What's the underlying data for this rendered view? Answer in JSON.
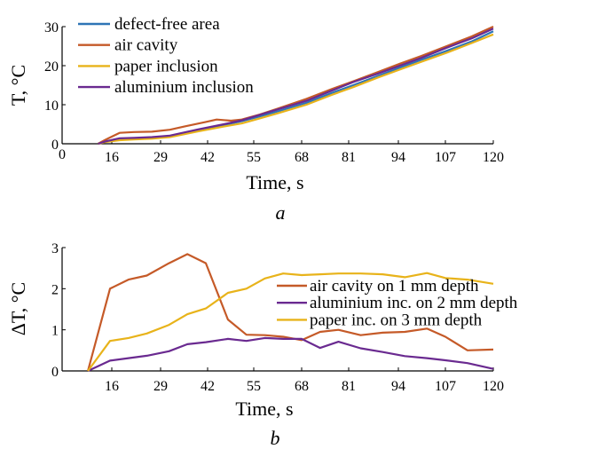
{
  "chart_data": [
    {
      "type": "line",
      "panel_label": "a",
      "xlabel": "Time, s",
      "ylabel": "T, °C",
      "x_tick_labels": [
        "0",
        "16",
        "29",
        "42",
        "55",
        "68",
        "81",
        "94",
        "107",
        "120"
      ],
      "y_tick_labels": [
        "0",
        "10",
        "20",
        "30"
      ],
      "xlim": [
        0,
        120
      ],
      "ylim": [
        0,
        30
      ],
      "grid": false,
      "legend_position": "top-left",
      "series": [
        {
          "name": "defect-free area",
          "color": "#2E75B6",
          "points": [
            [
              10,
              0
            ],
            [
              12,
              0.5
            ],
            [
              16,
              1.0
            ],
            [
              20,
              1.2
            ],
            [
              25,
              1.4
            ],
            [
              30,
              1.9
            ],
            [
              38,
              3.5
            ],
            [
              45,
              4.8
            ],
            [
              50,
              5.8
            ],
            [
              55,
              7.0
            ],
            [
              60,
              8.3
            ],
            [
              68,
              10.5
            ],
            [
              75,
              13.0
            ],
            [
              81,
              15.0
            ],
            [
              88,
              17.4
            ],
            [
              94,
              19.5
            ],
            [
              100,
              21.5
            ],
            [
              107,
              23.8
            ],
            [
              114,
              26.2
            ],
            [
              120,
              28.8
            ]
          ]
        },
        {
          "name": "air cavity",
          "color": "#C55A28",
          "points": [
            [
              10,
              0
            ],
            [
              12,
              1.0
            ],
            [
              16,
              2.8
            ],
            [
              20,
              3.0
            ],
            [
              25,
              3.1
            ],
            [
              30,
              3.6
            ],
            [
              34,
              4.4
            ],
            [
              40,
              5.6
            ],
            [
              43,
              6.2
            ],
            [
              47,
              5.9
            ],
            [
              50,
              6.2
            ],
            [
              55,
              7.5
            ],
            [
              60,
              9.0
            ],
            [
              68,
              11.5
            ],
            [
              75,
              14.0
            ],
            [
              81,
              16.0
            ],
            [
              88,
              18.4
            ],
            [
              94,
              20.5
            ],
            [
              100,
              22.5
            ],
            [
              107,
              25.0
            ],
            [
              114,
              27.5
            ],
            [
              120,
              30.0
            ]
          ]
        },
        {
          "name": "paper inclusion",
          "color": "#E8B31A",
          "points": [
            [
              10,
              0
            ],
            [
              12,
              0.4
            ],
            [
              16,
              0.9
            ],
            [
              20,
              1.1
            ],
            [
              25,
              1.3
            ],
            [
              30,
              1.7
            ],
            [
              38,
              3.2
            ],
            [
              45,
              4.4
            ],
            [
              50,
              5.2
            ],
            [
              55,
              6.5
            ],
            [
              60,
              7.8
            ],
            [
              68,
              10.0
            ],
            [
              75,
              12.5
            ],
            [
              81,
              14.5
            ],
            [
              88,
              17.0
            ],
            [
              94,
              19.0
            ],
            [
              100,
              21.0
            ],
            [
              107,
              23.3
            ],
            [
              114,
              25.8
            ],
            [
              120,
              28.0
            ]
          ]
        },
        {
          "name": "aluminium inclusion",
          "color": "#6A2A90",
          "points": [
            [
              10,
              0
            ],
            [
              12,
              0.6
            ],
            [
              16,
              1.4
            ],
            [
              20,
              1.5
            ],
            [
              25,
              1.7
            ],
            [
              30,
              2.1
            ],
            [
              38,
              3.7
            ],
            [
              45,
              5.0
            ],
            [
              50,
              6.0
            ],
            [
              55,
              7.4
            ],
            [
              60,
              8.8
            ],
            [
              68,
              11.0
            ],
            [
              75,
              13.6
            ],
            [
              81,
              15.8
            ],
            [
              88,
              18.0
            ],
            [
              94,
              20.0
            ],
            [
              100,
              22.0
            ],
            [
              107,
              24.6
            ],
            [
              114,
              27.0
            ],
            [
              120,
              29.5
            ]
          ]
        }
      ]
    },
    {
      "type": "line",
      "panel_label": "b",
      "xlabel": "Time, s",
      "ylabel": "ΔT, °C",
      "x_tick_labels": [
        "16",
        "29",
        "42",
        "55",
        "68",
        "81",
        "94",
        "107",
        "120"
      ],
      "y_tick_labels": [
        "0",
        "1",
        "2",
        "3"
      ],
      "xlim": [
        3,
        120
      ],
      "ylim": [
        0,
        3
      ],
      "grid": false,
      "legend_position": "center-right",
      "series": [
        {
          "name": "air cavity on 1 mm depth",
          "color": "#C55A28",
          "points": [
            [
              10,
              0
            ],
            [
              16,
              2.0
            ],
            [
              21,
              2.22
            ],
            [
              26,
              2.32
            ],
            [
              32,
              2.62
            ],
            [
              37,
              2.84
            ],
            [
              42,
              2.62
            ],
            [
              48,
              1.25
            ],
            [
              53,
              0.88
            ],
            [
              58,
              0.87
            ],
            [
              63,
              0.83
            ],
            [
              68,
              0.75
            ],
            [
              73,
              0.95
            ],
            [
              78,
              1.0
            ],
            [
              84,
              0.87
            ],
            [
              90,
              0.93
            ],
            [
              96,
              0.95
            ],
            [
              102,
              1.03
            ],
            [
              107,
              0.83
            ],
            [
              113,
              0.5
            ],
            [
              120,
              0.52
            ]
          ]
        },
        {
          "name": "aluminium inc. on 2 mm depth",
          "color": "#6A2A90",
          "points": [
            [
              10,
              0
            ],
            [
              16,
              0.25
            ],
            [
              21,
              0.31
            ],
            [
              26,
              0.37
            ],
            [
              32,
              0.48
            ],
            [
              37,
              0.65
            ],
            [
              42,
              0.7
            ],
            [
              48,
              0.78
            ],
            [
              53,
              0.73
            ],
            [
              58,
              0.8
            ],
            [
              63,
              0.78
            ],
            [
              68,
              0.78
            ],
            [
              73,
              0.56
            ],
            [
              78,
              0.71
            ],
            [
              84,
              0.55
            ],
            [
              90,
              0.46
            ],
            [
              96,
              0.36
            ],
            [
              102,
              0.31
            ],
            [
              107,
              0.26
            ],
            [
              113,
              0.19
            ],
            [
              120,
              0.05
            ]
          ]
        },
        {
          "name": "paper inc. on 3 mm depth",
          "color": "#E8B31A",
          "points": [
            [
              10,
              0
            ],
            [
              16,
              0.73
            ],
            [
              21,
              0.8
            ],
            [
              26,
              0.91
            ],
            [
              32,
              1.12
            ],
            [
              37,
              1.38
            ],
            [
              42,
              1.52
            ],
            [
              48,
              1.9
            ],
            [
              53,
              2.0
            ],
            [
              58,
              2.25
            ],
            [
              63,
              2.37
            ],
            [
              68,
              2.33
            ],
            [
              73,
              2.35
            ],
            [
              78,
              2.37
            ],
            [
              84,
              2.37
            ],
            [
              90,
              2.35
            ],
            [
              96,
              2.28
            ],
            [
              102,
              2.38
            ],
            [
              107,
              2.26
            ],
            [
              113,
              2.22
            ],
            [
              120,
              2.12
            ]
          ]
        }
      ]
    }
  ]
}
